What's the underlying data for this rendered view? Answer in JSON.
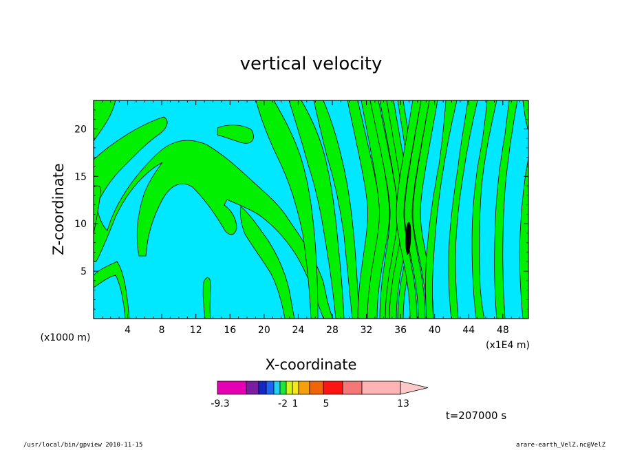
{
  "chart_data": {
    "type": "heatmap",
    "title": "vertical velocity",
    "xlabel": "X-coordinate",
    "ylabel": "Z-coordinate",
    "x_unit_left": "(x1000 m)",
    "x_unit_right": "(x1E4 m)",
    "xlim": [
      0,
      51
    ],
    "ylim": [
      0,
      23
    ],
    "xticks": [
      4,
      8,
      12,
      16,
      20,
      24,
      28,
      32,
      36,
      40,
      44,
      48
    ],
    "yticks": [
      5,
      10,
      15,
      20
    ],
    "colorbar": {
      "colors": [
        "#e600b4",
        "#7a1ea0",
        "#1428c8",
        "#1e64f0",
        "#1ed2f0",
        "#1ee63c",
        "#d2f514",
        "#f5e61e",
        "#f5a00a",
        "#f0640a",
        "#ff1414",
        "#f57878",
        "#ffb4b4"
      ],
      "labels": [
        {
          "text": "-9.3",
          "pos": 0
        },
        {
          "text": "-2",
          "pos": 5
        },
        {
          "text": "1",
          "pos": 7
        },
        {
          "text": "5",
          "pos": 10
        },
        {
          "text": "13",
          "pos": 15
        }
      ]
    },
    "time_label": "t=207000 s"
  },
  "footer": {
    "left": "/usr/local/bin/gpview  2010-11-15",
    "right": "arare-earth_VelZ.nc@VelZ"
  },
  "colors": {
    "negative_region": "#00e8ff",
    "positive_region": "#00f000"
  }
}
